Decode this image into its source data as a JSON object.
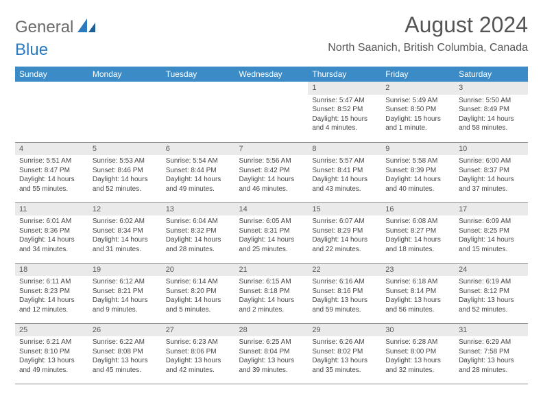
{
  "logo": {
    "part1": "General",
    "part2": "Blue"
  },
  "title": "August 2024",
  "location": "North Saanich, British Columbia, Canada",
  "colors": {
    "header_bar": "#3b8bc6",
    "daynum_bg": "#eaeaea",
    "text": "#555555",
    "logo_blue": "#2b7abf",
    "logo_gray": "#6a6a6a"
  },
  "weekdays": [
    "Sunday",
    "Monday",
    "Tuesday",
    "Wednesday",
    "Thursday",
    "Friday",
    "Saturday"
  ],
  "weeks": [
    [
      null,
      null,
      null,
      null,
      {
        "n": "1",
        "sr": "5:47 AM",
        "ss": "8:52 PM",
        "dl": "15 hours and 4 minutes."
      },
      {
        "n": "2",
        "sr": "5:49 AM",
        "ss": "8:50 PM",
        "dl": "15 hours and 1 minute."
      },
      {
        "n": "3",
        "sr": "5:50 AM",
        "ss": "8:49 PM",
        "dl": "14 hours and 58 minutes."
      }
    ],
    [
      {
        "n": "4",
        "sr": "5:51 AM",
        "ss": "8:47 PM",
        "dl": "14 hours and 55 minutes."
      },
      {
        "n": "5",
        "sr": "5:53 AM",
        "ss": "8:46 PM",
        "dl": "14 hours and 52 minutes."
      },
      {
        "n": "6",
        "sr": "5:54 AM",
        "ss": "8:44 PM",
        "dl": "14 hours and 49 minutes."
      },
      {
        "n": "7",
        "sr": "5:56 AM",
        "ss": "8:42 PM",
        "dl": "14 hours and 46 minutes."
      },
      {
        "n": "8",
        "sr": "5:57 AM",
        "ss": "8:41 PM",
        "dl": "14 hours and 43 minutes."
      },
      {
        "n": "9",
        "sr": "5:58 AM",
        "ss": "8:39 PM",
        "dl": "14 hours and 40 minutes."
      },
      {
        "n": "10",
        "sr": "6:00 AM",
        "ss": "8:37 PM",
        "dl": "14 hours and 37 minutes."
      }
    ],
    [
      {
        "n": "11",
        "sr": "6:01 AM",
        "ss": "8:36 PM",
        "dl": "14 hours and 34 minutes."
      },
      {
        "n": "12",
        "sr": "6:02 AM",
        "ss": "8:34 PM",
        "dl": "14 hours and 31 minutes."
      },
      {
        "n": "13",
        "sr": "6:04 AM",
        "ss": "8:32 PM",
        "dl": "14 hours and 28 minutes."
      },
      {
        "n": "14",
        "sr": "6:05 AM",
        "ss": "8:31 PM",
        "dl": "14 hours and 25 minutes."
      },
      {
        "n": "15",
        "sr": "6:07 AM",
        "ss": "8:29 PM",
        "dl": "14 hours and 22 minutes."
      },
      {
        "n": "16",
        "sr": "6:08 AM",
        "ss": "8:27 PM",
        "dl": "14 hours and 18 minutes."
      },
      {
        "n": "17",
        "sr": "6:09 AM",
        "ss": "8:25 PM",
        "dl": "14 hours and 15 minutes."
      }
    ],
    [
      {
        "n": "18",
        "sr": "6:11 AM",
        "ss": "8:23 PM",
        "dl": "14 hours and 12 minutes."
      },
      {
        "n": "19",
        "sr": "6:12 AM",
        "ss": "8:21 PM",
        "dl": "14 hours and 9 minutes."
      },
      {
        "n": "20",
        "sr": "6:14 AM",
        "ss": "8:20 PM",
        "dl": "14 hours and 5 minutes."
      },
      {
        "n": "21",
        "sr": "6:15 AM",
        "ss": "8:18 PM",
        "dl": "14 hours and 2 minutes."
      },
      {
        "n": "22",
        "sr": "6:16 AM",
        "ss": "8:16 PM",
        "dl": "13 hours and 59 minutes."
      },
      {
        "n": "23",
        "sr": "6:18 AM",
        "ss": "8:14 PM",
        "dl": "13 hours and 56 minutes."
      },
      {
        "n": "24",
        "sr": "6:19 AM",
        "ss": "8:12 PM",
        "dl": "13 hours and 52 minutes."
      }
    ],
    [
      {
        "n": "25",
        "sr": "6:21 AM",
        "ss": "8:10 PM",
        "dl": "13 hours and 49 minutes."
      },
      {
        "n": "26",
        "sr": "6:22 AM",
        "ss": "8:08 PM",
        "dl": "13 hours and 45 minutes."
      },
      {
        "n": "27",
        "sr": "6:23 AM",
        "ss": "8:06 PM",
        "dl": "13 hours and 42 minutes."
      },
      {
        "n": "28",
        "sr": "6:25 AM",
        "ss": "8:04 PM",
        "dl": "13 hours and 39 minutes."
      },
      {
        "n": "29",
        "sr": "6:26 AM",
        "ss": "8:02 PM",
        "dl": "13 hours and 35 minutes."
      },
      {
        "n": "30",
        "sr": "6:28 AM",
        "ss": "8:00 PM",
        "dl": "13 hours and 32 minutes."
      },
      {
        "n": "31",
        "sr": "6:29 AM",
        "ss": "7:58 PM",
        "dl": "13 hours and 28 minutes."
      }
    ]
  ],
  "labels": {
    "sunrise": "Sunrise: ",
    "sunset": "Sunset: ",
    "daylight": "Daylight: "
  }
}
